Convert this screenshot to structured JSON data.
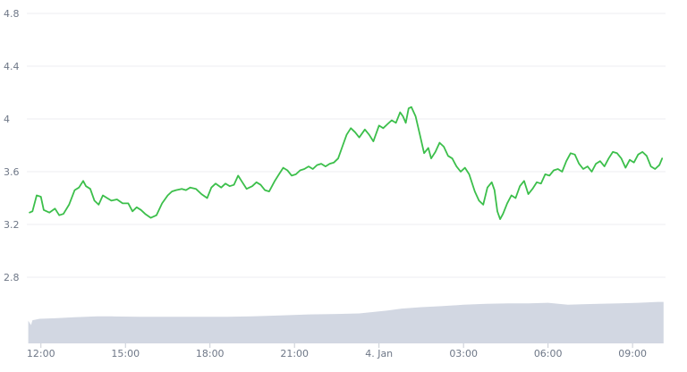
{
  "colors": {
    "price_line": "#3cbf4b",
    "volume_fill": "#d2d7e2",
    "grid": "#ececf0",
    "tick_text": "#6e7787",
    "background": "#ffffff"
  },
  "chart_data": {
    "type": "line",
    "title": "",
    "xlabel": "",
    "ylabel": "",
    "grid": true,
    "legend": "none",
    "x_unit": "hours_of_3_Jan",
    "x_range": [
      11.5,
      34.17
    ],
    "ylim": [
      2.8,
      4.8
    ],
    "ylim_panel": [
      2.8,
      5.0
    ],
    "y_ticks": [
      {
        "value": 2.8,
        "label": "2.8"
      },
      {
        "value": 3.2,
        "label": "3.2"
      },
      {
        "value": 3.6,
        "label": "3.6"
      },
      {
        "value": 4.0,
        "label": "4"
      },
      {
        "value": 4.4,
        "label": "4.4"
      },
      {
        "value": 4.8,
        "label": "4.8"
      }
    ],
    "x_ticks": [
      {
        "value": 12,
        "label": "12:00"
      },
      {
        "value": 15,
        "label": "15:00"
      },
      {
        "value": 18,
        "label": "18:00"
      },
      {
        "value": 21,
        "label": "21:00"
      },
      {
        "value": 24,
        "label": "4. Jan"
      },
      {
        "value": 27,
        "label": "03:00"
      },
      {
        "value": 30,
        "label": "06:00"
      },
      {
        "value": 33,
        "label": "09:00"
      }
    ],
    "series": [
      {
        "kind": "price",
        "x": [
          11.6,
          11.7,
          11.85,
          12.0,
          12.1,
          12.3,
          12.5,
          12.65,
          12.8,
          13.0,
          13.2,
          13.35,
          13.5,
          13.6,
          13.75,
          13.9,
          14.05,
          14.2,
          14.35,
          14.5,
          14.7,
          14.9,
          15.1,
          15.25,
          15.4,
          15.55,
          15.7,
          15.9,
          16.1,
          16.3,
          16.5,
          16.65,
          16.8,
          17.0,
          17.15,
          17.3,
          17.5,
          17.7,
          17.9,
          18.05,
          18.2,
          18.4,
          18.55,
          18.7,
          18.85,
          19.0,
          19.15,
          19.3,
          19.5,
          19.65,
          19.8,
          19.95,
          20.1,
          20.3,
          20.45,
          20.6,
          20.75,
          20.9,
          21.05,
          21.2,
          21.35,
          21.5,
          21.65,
          21.8,
          21.95,
          22.1,
          22.25,
          22.4,
          22.55,
          22.7,
          22.85,
          23.0,
          23.15,
          23.3,
          23.5,
          23.65,
          23.8,
          24.0,
          24.15,
          24.3,
          24.45,
          24.6,
          24.75,
          24.85,
          24.95,
          25.05,
          25.15,
          25.3,
          25.45,
          25.6,
          25.75,
          25.85,
          26.0,
          26.15,
          26.3,
          26.45,
          26.6,
          26.75,
          26.9,
          27.05,
          27.2,
          27.4,
          27.55,
          27.7,
          27.85,
          28.0,
          28.1,
          28.2,
          28.3,
          28.4,
          28.55,
          28.7,
          28.85,
          29.0,
          29.15,
          29.3,
          29.45,
          29.6,
          29.75,
          29.9,
          30.05,
          30.2,
          30.35,
          30.5,
          30.65,
          30.8,
          30.95,
          31.1,
          31.25,
          31.4,
          31.55,
          31.7,
          31.85,
          32.0,
          32.15,
          32.3,
          32.45,
          32.6,
          32.75,
          32.9,
          33.05,
          33.2,
          33.35,
          33.5,
          33.65,
          33.8,
          33.95,
          34.05
        ],
        "y": [
          3.29,
          3.3,
          3.42,
          3.41,
          3.31,
          3.29,
          3.32,
          3.27,
          3.28,
          3.35,
          3.46,
          3.48,
          3.53,
          3.49,
          3.47,
          3.38,
          3.35,
          3.42,
          3.4,
          3.38,
          3.39,
          3.36,
          3.36,
          3.3,
          3.33,
          3.31,
          3.28,
          3.25,
          3.27,
          3.36,
          3.42,
          3.45,
          3.46,
          3.47,
          3.46,
          3.48,
          3.47,
          3.43,
          3.4,
          3.48,
          3.51,
          3.48,
          3.51,
          3.49,
          3.5,
          3.57,
          3.52,
          3.47,
          3.49,
          3.52,
          3.5,
          3.46,
          3.45,
          3.53,
          3.58,
          3.63,
          3.61,
          3.57,
          3.58,
          3.61,
          3.62,
          3.64,
          3.62,
          3.65,
          3.66,
          3.64,
          3.66,
          3.67,
          3.7,
          3.79,
          3.88,
          3.93,
          3.9,
          3.86,
          3.92,
          3.88,
          3.83,
          3.95,
          3.93,
          3.96,
          3.99,
          3.97,
          4.05,
          4.02,
          3.97,
          4.08,
          4.09,
          4.02,
          3.88,
          3.74,
          3.78,
          3.7,
          3.75,
          3.82,
          3.79,
          3.72,
          3.7,
          3.64,
          3.6,
          3.63,
          3.58,
          3.45,
          3.38,
          3.35,
          3.48,
          3.52,
          3.46,
          3.3,
          3.24,
          3.28,
          3.36,
          3.42,
          3.4,
          3.49,
          3.53,
          3.43,
          3.47,
          3.52,
          3.51,
          3.58,
          3.57,
          3.61,
          3.62,
          3.6,
          3.68,
          3.74,
          3.73,
          3.66,
          3.62,
          3.64,
          3.6,
          3.66,
          3.68,
          3.64,
          3.7,
          3.75,
          3.74,
          3.7,
          3.63,
          3.69,
          3.67,
          3.73,
          3.75,
          3.72,
          3.64,
          3.62,
          3.65,
          3.7
        ]
      },
      {
        "kind": "volume",
        "scale": "relative",
        "x": [
          11.55,
          11.65,
          11.7,
          11.8,
          11.95,
          12.5,
          13.2,
          14.0,
          14.5,
          15.5,
          16.5,
          17.5,
          18.5,
          19.5,
          20.5,
          21.5,
          22.5,
          23.3,
          23.8,
          24.3,
          24.8,
          25.5,
          26.2,
          27.0,
          27.8,
          28.6,
          29.3,
          30.0,
          30.7,
          31.2,
          31.8,
          32.5,
          33.2,
          33.9,
          34.1
        ],
        "y": [
          0.47,
          0.38,
          0.48,
          0.49,
          0.51,
          0.52,
          0.54,
          0.56,
          0.56,
          0.55,
          0.55,
          0.55,
          0.55,
          0.56,
          0.58,
          0.6,
          0.61,
          0.62,
          0.65,
          0.68,
          0.72,
          0.75,
          0.77,
          0.8,
          0.82,
          0.83,
          0.83,
          0.84,
          0.8,
          0.81,
          0.82,
          0.83,
          0.84,
          0.86,
          0.86
        ]
      }
    ]
  }
}
